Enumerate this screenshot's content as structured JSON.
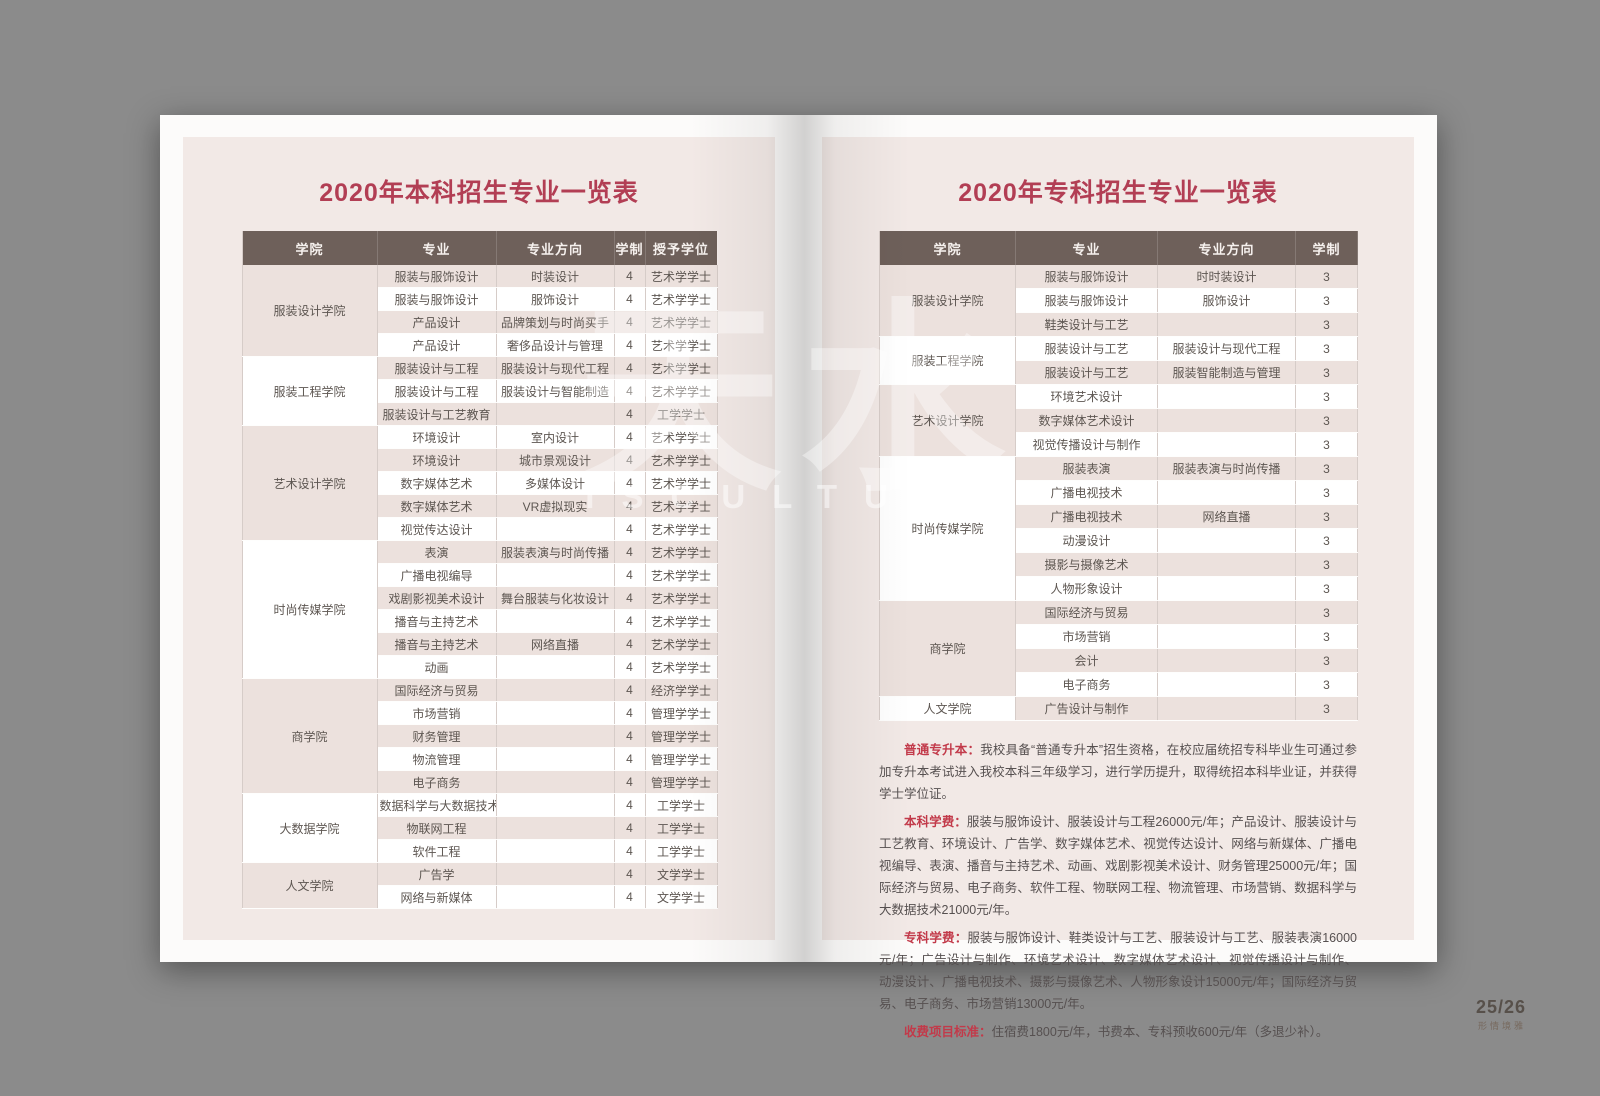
{
  "colors": {
    "title_red": "#b23e54",
    "label_red": "#c23a4a",
    "header_brown": "#6e605a",
    "row_pink": "#ece1dd",
    "panel_pink": "#f2e9e6"
  },
  "watermark": {
    "cn": "天水",
    "en": "ISCULTURE"
  },
  "left": {
    "title": "2020年本科招生专业一览表",
    "table": {
      "headers": [
        "学院",
        "专业",
        "专业方向",
        "学制",
        "授予学位"
      ],
      "groups": [
        {
          "college": "服装设计学院",
          "rows": [
            [
              "服装与服饰设计",
              "时装设计",
              "4",
              "艺术学学士"
            ],
            [
              "服装与服饰设计",
              "服饰设计",
              "4",
              "艺术学学士"
            ],
            [
              "产品设计",
              "品牌策划与时尚买手",
              "4",
              "艺术学学士"
            ],
            [
              "产品设计",
              "奢侈品设计与管理",
              "4",
              "艺术学学士"
            ]
          ]
        },
        {
          "college": "服装工程学院",
          "rows": [
            [
              "服装设计与工程",
              "服装设计与现代工程",
              "4",
              "艺术学学士"
            ],
            [
              "服装设计与工程",
              "服装设计与智能制造",
              "4",
              "艺术学学士"
            ],
            [
              "服装设计与工艺教育",
              "",
              "4",
              "工学学士"
            ]
          ]
        },
        {
          "college": "艺术设计学院",
          "rows": [
            [
              "环境设计",
              "室内设计",
              "4",
              "艺术学学士"
            ],
            [
              "环境设计",
              "城市景观设计",
              "4",
              "艺术学学士"
            ],
            [
              "数字媒体艺术",
              "多媒体设计",
              "4",
              "艺术学学士"
            ],
            [
              "数字媒体艺术",
              "VR虚拟现实",
              "4",
              "艺术学学士"
            ],
            [
              "视觉传达设计",
              "",
              "4",
              "艺术学学士"
            ]
          ]
        },
        {
          "college": "时尚传媒学院",
          "rows": [
            [
              "表演",
              "服装表演与时尚传播",
              "4",
              "艺术学学士"
            ],
            [
              "广播电视编导",
              "",
              "4",
              "艺术学学士"
            ],
            [
              "戏剧影视美术设计",
              "舞台服装与化妆设计",
              "4",
              "艺术学学士"
            ],
            [
              "播音与主持艺术",
              "",
              "4",
              "艺术学学士"
            ],
            [
              "播音与主持艺术",
              "网络直播",
              "4",
              "艺术学学士"
            ],
            [
              "动画",
              "",
              "4",
              "艺术学学士"
            ]
          ]
        },
        {
          "college": "商学院",
          "rows": [
            [
              "国际经济与贸易",
              "",
              "4",
              "经济学学士"
            ],
            [
              "市场营销",
              "",
              "4",
              "管理学学士"
            ],
            [
              "财务管理",
              "",
              "4",
              "管理学学士"
            ],
            [
              "物流管理",
              "",
              "4",
              "管理学学士"
            ],
            [
              "电子商务",
              "",
              "4",
              "管理学学士"
            ]
          ]
        },
        {
          "college": "大数据学院",
          "rows": [
            [
              "数据科学与大数据技术",
              "",
              "4",
              "工学学士"
            ],
            [
              "物联网工程",
              "",
              "4",
              "工学学士"
            ],
            [
              "软件工程",
              "",
              "4",
              "工学学士"
            ]
          ]
        },
        {
          "college": "人文学院",
          "rows": [
            [
              "广告学",
              "",
              "4",
              "文学学士"
            ],
            [
              "网络与新媒体",
              "",
              "4",
              "文学学士"
            ]
          ]
        }
      ]
    }
  },
  "right": {
    "title": "2020年专科招生专业一览表",
    "table": {
      "headers": [
        "学院",
        "专业",
        "专业方向",
        "学制"
      ],
      "groups": [
        {
          "college": "服装设计学院",
          "rows": [
            [
              "服装与服饰设计",
              "时时装设计",
              "3"
            ],
            [
              "服装与服饰设计",
              "服饰设计",
              "3"
            ],
            [
              "鞋类设计与工艺",
              "",
              "3"
            ]
          ]
        },
        {
          "college": "服装工程学院",
          "rows": [
            [
              "服装设计与工艺",
              "服装设计与现代工程",
              "3"
            ],
            [
              "服装设计与工艺",
              "服装智能制造与管理",
              "3"
            ]
          ]
        },
        {
          "college": "艺术设计学院",
          "rows": [
            [
              "环境艺术设计",
              "",
              "3"
            ],
            [
              "数字媒体艺术设计",
              "",
              "3"
            ],
            [
              "视觉传播设计与制作",
              "",
              "3"
            ]
          ]
        },
        {
          "college": "时尚传媒学院",
          "rows": [
            [
              "服装表演",
              "服装表演与时尚传播",
              "3"
            ],
            [
              "广播电视技术",
              "",
              "3"
            ],
            [
              "广播电视技术",
              "网络直播",
              "3"
            ],
            [
              "动漫设计",
              "",
              "3"
            ],
            [
              "摄影与摄像艺术",
              "",
              "3"
            ],
            [
              "人物形象设计",
              "",
              "3"
            ]
          ]
        },
        {
          "college": "商学院",
          "rows": [
            [
              "国际经济与贸易",
              "",
              "3"
            ],
            [
              "市场营销",
              "",
              "3"
            ],
            [
              "会计",
              "",
              "3"
            ],
            [
              "电子商务",
              "",
              "3"
            ]
          ]
        },
        {
          "college": "人文学院",
          "rows": [
            [
              "广告设计与制作",
              "",
              "3"
            ]
          ]
        }
      ]
    },
    "notes": [
      {
        "label": "普通专升本：",
        "text": "我校具备“普通专升本”招生资格，在校应届统招专科毕业生可通过参加专升本考试进入我校本科三年级学习，进行学历提升，取得统招本科毕业证，并获得学士学位证。"
      },
      {
        "label": "本科学费：",
        "text": "服装与服饰设计、服装设计与工程26000元/年；产品设计、服装设计与工艺教育、环境设计、广告学、数字媒体艺术、视觉传达设计、网络与新媒体、广播电视编导、表演、播音与主持艺术、动画、戏剧影视美术设计、财务管理25000元/年；国际经济与贸易、电子商务、软件工程、物联网工程、物流管理、市场营销、数据科学与大数据技术21000元/年。"
      },
      {
        "label": "专科学费：",
        "text": "服装与服饰设计、鞋类设计与工艺、服装设计与工艺、服装表演16000元/年；广告设计与制作、环境艺术设计、数字媒体艺术设计、视觉传播设计与制作、动漫设计、广播电视技术、摄影与摄像艺术、人物形象设计15000元/年；国际经济与贸易、电子商务、市场营销13000元/年。"
      },
      {
        "label": "收费项目标准：",
        "text": "住宿费1800元/年，书费本、专科预收600元/年（多退少补）。"
      }
    ],
    "page_number": "25/26",
    "calligraphy": "形情境雅"
  }
}
